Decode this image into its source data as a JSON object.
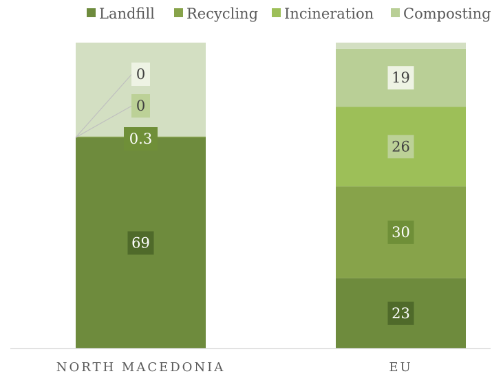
{
  "chart_data": {
    "type": "bar",
    "stacked": true,
    "categories": [
      "NORTH MACEDONIA",
      "EU"
    ],
    "series": [
      {
        "name": "Landfill",
        "color": "#6e8b3d",
        "label_bg": "#4f6a2a",
        "values": [
          69,
          23
        ]
      },
      {
        "name": "Recycling",
        "color": "#87a34a",
        "label_bg": "#6f8f38",
        "values": [
          0.3,
          30
        ]
      },
      {
        "name": "Incineration",
        "color": "#9dbf58",
        "label_bg": "#bcd197",
        "values": [
          0,
          26
        ]
      },
      {
        "name": "Composting",
        "color": "#b9cf96",
        "label_bg": "#eef3e4",
        "values": [
          0,
          19
        ]
      }
    ],
    "remainder_color": "#d3dfc2",
    "data_labels": [
      [
        "69",
        "0.3",
        "0",
        "0"
      ],
      [
        "23",
        "30",
        "26",
        "19"
      ]
    ],
    "legend_position": "top",
    "ylim": [
      0,
      100
    ],
    "grid": false,
    "axis_line_color": "#d9d9d9",
    "leader_line_color": "#bfbfbf"
  }
}
